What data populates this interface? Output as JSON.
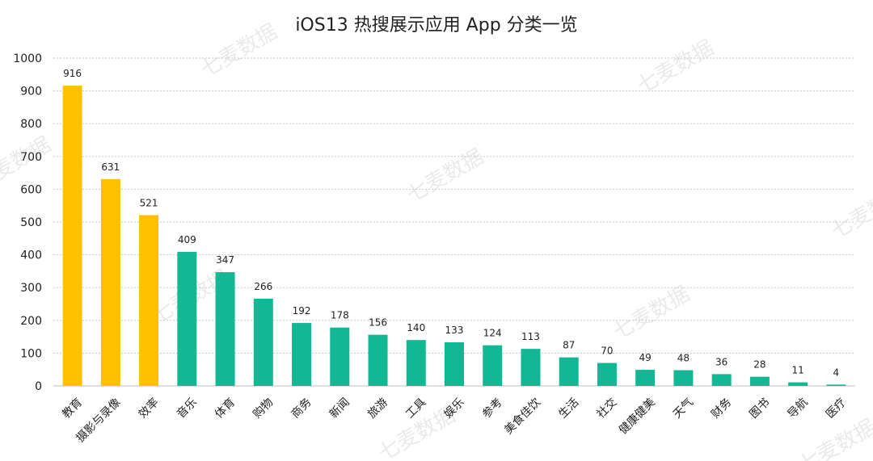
{
  "chart_data": {
    "type": "bar",
    "title": "iOS13 热搜展示应用 App 分类一览",
    "xlabel": "",
    "ylabel": "",
    "ylim": [
      0,
      1000
    ],
    "yticks": [
      0,
      100,
      200,
      300,
      400,
      500,
      600,
      700,
      800,
      900,
      1000
    ],
    "grid": true,
    "legend": "none",
    "categories": [
      "教育",
      "摄影与录像",
      "效率",
      "音乐",
      "体育",
      "购物",
      "商务",
      "新闻",
      "旅游",
      "工具",
      "娱乐",
      "参考",
      "美食佳饮",
      "生活",
      "社交",
      "健康健美",
      "天气",
      "财务",
      "图书",
      "导航",
      "医疗"
    ],
    "values": [
      916,
      631,
      521,
      409,
      347,
      266,
      192,
      178,
      156,
      140,
      133,
      124,
      113,
      87,
      70,
      49,
      48,
      36,
      28,
      11,
      4
    ],
    "highlight_count": 3,
    "colors": {
      "highlight": "#FFC000",
      "normal": "#12B893",
      "grid": "#c8c8c8",
      "axis": "#bfbfbf"
    }
  },
  "watermark": "七麦数据"
}
